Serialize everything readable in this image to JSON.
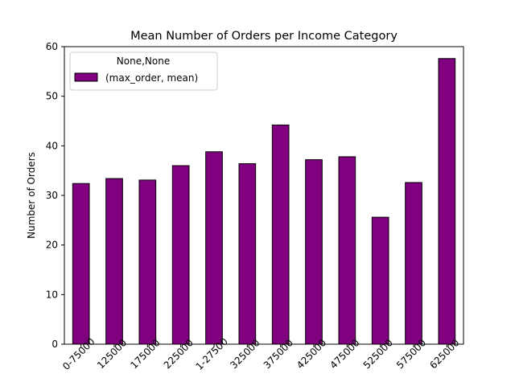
{
  "chart_data": {
    "type": "bar",
    "title": "Mean Number of Orders per Income Category",
    "xlabel": "",
    "ylabel": "Number of Orders",
    "ylim": [
      0,
      60
    ],
    "yticks": [
      0,
      10,
      20,
      30,
      40,
      50,
      60
    ],
    "grid": false,
    "categories": [
      "0-75000",
      "125000",
      "175000",
      "225000",
      "1-27500",
      "325000",
      "375000",
      "425000",
      "475000",
      "525000",
      "575000",
      "625000"
    ],
    "series": [
      {
        "name": "(max_order, mean)",
        "values": [
          32.4,
          33.4,
          33.1,
          36.0,
          38.8,
          36.4,
          44.2,
          37.2,
          37.8,
          25.6,
          32.6,
          57.6
        ]
      }
    ],
    "legend": {
      "title": "None,None",
      "placement": "top-left"
    },
    "colors": {
      "bar": "#800080",
      "edge": "#000000"
    }
  }
}
